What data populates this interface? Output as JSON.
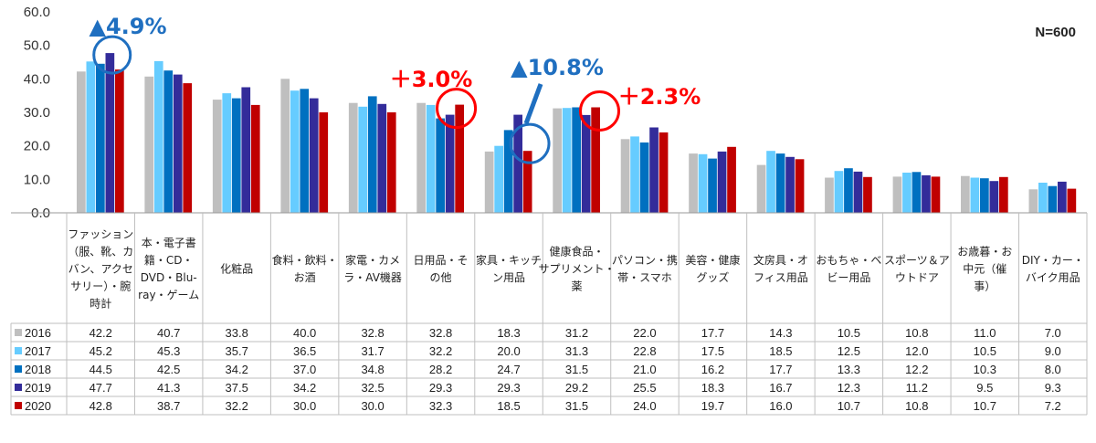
{
  "chart_data": {
    "type": "bar",
    "sample_label": "N=600",
    "y_ticks": [
      "0.0",
      "10.0",
      "20.0",
      "30.0",
      "40.0",
      "50.0",
      "60.0"
    ],
    "ylim": [
      0,
      60
    ],
    "categories": [
      [
        "ファッション",
        "（服、靴、カ",
        "バン、アクセ",
        "サリー）・腕",
        "時計"
      ],
      [
        "本・電子書",
        "籍・CD・",
        "DVD・Blu-",
        "ray・ゲーム"
      ],
      [
        "化粧品"
      ],
      [
        "食料・飲料・",
        "お酒"
      ],
      [
        "家電・カメ",
        "ラ・AV機器"
      ],
      [
        "日用品・そ",
        "の他"
      ],
      [
        "家具・キッチ",
        "ン用品"
      ],
      [
        "健康食品・",
        "サプリメント・",
        "薬"
      ],
      [
        "パソコン・携",
        "帯・スマホ"
      ],
      [
        "美容・健康",
        "グッズ"
      ],
      [
        "文房具・オ",
        "フィス用品"
      ],
      [
        "おもちゃ・ベ",
        "ビー用品"
      ],
      [
        "スポーツ＆ア",
        "ウトドア"
      ],
      [
        "お歳暮・お",
        "中元（催",
        "事）"
      ],
      [
        "DIY・カー・",
        "バイク用品"
      ]
    ],
    "series": [
      {
        "name": "2016",
        "color": "#bfbfbf",
        "values": [
          "42.2",
          "40.7",
          "33.8",
          "40.0",
          "32.8",
          "32.8",
          "18.3",
          "31.2",
          "22.0",
          "17.7",
          "14.3",
          "10.5",
          "10.8",
          "11.0",
          "7.0"
        ]
      },
      {
        "name": "2017",
        "color": "#66ccff",
        "values": [
          "45.2",
          "45.3",
          "35.7",
          "36.5",
          "31.7",
          "32.2",
          "20.0",
          "31.3",
          "22.8",
          "17.5",
          "18.5",
          "12.5",
          "12.0",
          "10.5",
          "9.0"
        ]
      },
      {
        "name": "2018",
        "color": "#0070c0",
        "values": [
          "44.5",
          "42.5",
          "34.2",
          "37.0",
          "34.8",
          "28.2",
          "24.7",
          "31.5",
          "21.0",
          "16.2",
          "17.7",
          "13.3",
          "12.2",
          "10.3",
          "8.0"
        ]
      },
      {
        "name": "2019",
        "color": "#332c9a",
        "values": [
          "47.7",
          "41.3",
          "37.5",
          "34.2",
          "32.5",
          "29.3",
          "29.3",
          "29.2",
          "25.5",
          "18.3",
          "16.7",
          "12.3",
          "11.2",
          "9.5",
          "9.3"
        ]
      },
      {
        "name": "2020",
        "color": "#c00000",
        "values": [
          "42.8",
          "38.7",
          "32.2",
          "30.0",
          "30.0",
          "32.3",
          "18.5",
          "31.5",
          "24.0",
          "19.7",
          "16.0",
          "10.7",
          "10.8",
          "10.7",
          "7.2"
        ]
      }
    ],
    "annotations": [
      {
        "text": "▲4.9%",
        "color": "#1f6fc0",
        "category_index": 0
      },
      {
        "text": "＋3.0%",
        "color": "#ff0000",
        "category_index": 5
      },
      {
        "text": "▲10.8%",
        "color": "#1f6fc0",
        "category_index": 6
      },
      {
        "text": "＋2.3%",
        "color": "#ff0000",
        "category_index": 7
      }
    ]
  }
}
